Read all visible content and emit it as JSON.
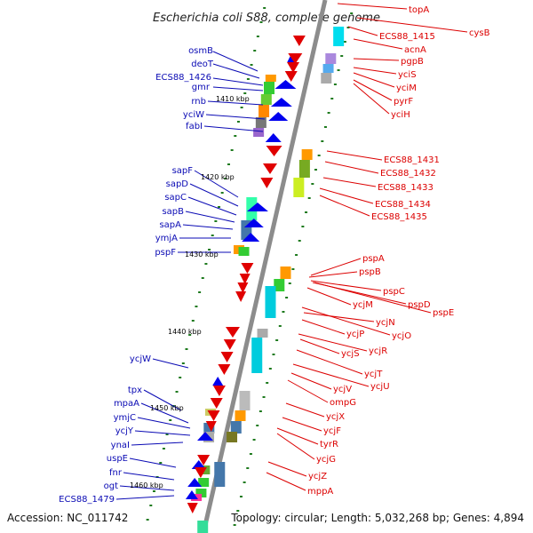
{
  "title": "Escherichia coli S88, complete genome",
  "footer": {
    "accession": "Accession: NC_011742",
    "topology": "Topology: circular; Length: 5,032,268 bp; Genes: 4,894"
  },
  "colors": {
    "minus_strand_label": "#0a0ab4",
    "plus_strand_label": "#dc0000",
    "backbone": "#8c8c8c",
    "tick": "#1e7a1e"
  },
  "kbp_marks": [
    "1410 kbp",
    "1420 kbp",
    "1430 kbp",
    "1440 kbp",
    "1450 kbp",
    "1460 kbp"
  ],
  "left_genes": [
    "osmB",
    "deoT",
    "ECS88_1426",
    "gmr",
    "rnb",
    "yciW",
    "fabI",
    "sapF",
    "sapD",
    "sapC",
    "sapB",
    "sapA",
    "ymjA",
    "pspF",
    "ycjW",
    "tpx",
    "mpaA",
    "ymjC",
    "ycjY",
    "ynaI",
    "uspE",
    "fnr",
    "ogt",
    "ECS88_1479"
  ],
  "right_genes": [
    "topA",
    "ECS88_1415",
    "cysB",
    "acnA",
    "pgpB",
    "yciS",
    "yciM",
    "pyrF",
    "yciH",
    "ECS88_1431",
    "ECS88_1432",
    "ECS88_1433",
    "ECS88_1434",
    "ECS88_1435",
    "pspA",
    "pspB",
    "pspC",
    "pspD",
    "pspE",
    "ycjM",
    "ycjN",
    "ycjO",
    "ycjP",
    "ycjS",
    "ycjR",
    "ycjT",
    "ycjU",
    "ycjV",
    "ompG",
    "ycjX",
    "ycjF",
    "tyrR",
    "ycjG",
    "ycjZ",
    "mppA"
  ]
}
